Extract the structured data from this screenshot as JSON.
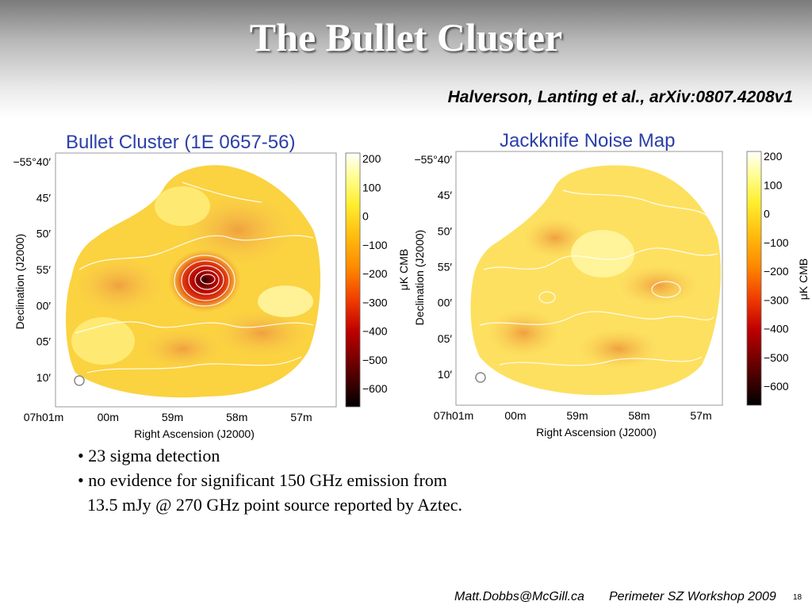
{
  "slide": {
    "title": "The Bullet Cluster",
    "citation": "Halverson, Lanting et al., arXiv:0807.4208v1"
  },
  "panels": [
    {
      "title": "Bullet Cluster (1E 0657-56)",
      "y_label": "Declination (J2000)",
      "x_label": "Right Ascension (J2000)",
      "y_ticks": [
        "−55°40′",
        "45′",
        "50′",
        "55′",
        "00′",
        "05′",
        "10′"
      ],
      "x_ticks": [
        "07h01m",
        "00m",
        "59m",
        "58m",
        "57m"
      ],
      "colorbar_label": "μK CMB",
      "colorbar_ticks": [
        "200",
        "100",
        "0",
        "−100",
        "−200",
        "−300",
        "−400",
        "−500",
        "−600"
      ]
    },
    {
      "title": "Jackknife Noise Map",
      "y_label": "Declination (J2000)",
      "x_label": "Right Ascension (J2000)",
      "y_ticks": [
        "−55°40′",
        "45′",
        "50′",
        "55′",
        "00′",
        "05′",
        "10′"
      ],
      "x_ticks": [
        "07h01m",
        "00m",
        "59m",
        "58m",
        "57m"
      ],
      "colorbar_label": "μK CMB",
      "colorbar_ticks": [
        "200",
        "100",
        "0",
        "−100",
        "−200",
        "−300",
        "−400",
        "−500",
        "−600"
      ]
    }
  ],
  "bullets": [
    "• 23 sigma detection",
    "• no evidence for significant 150 GHz emission from",
    "13.5 mJy @ 270 GHz point source reported by Aztec."
  ],
  "footer": {
    "email": "Matt.Dobbs@McGill.ca",
    "workshop": "Perimeter SZ Workshop 2009",
    "page": "18"
  }
}
